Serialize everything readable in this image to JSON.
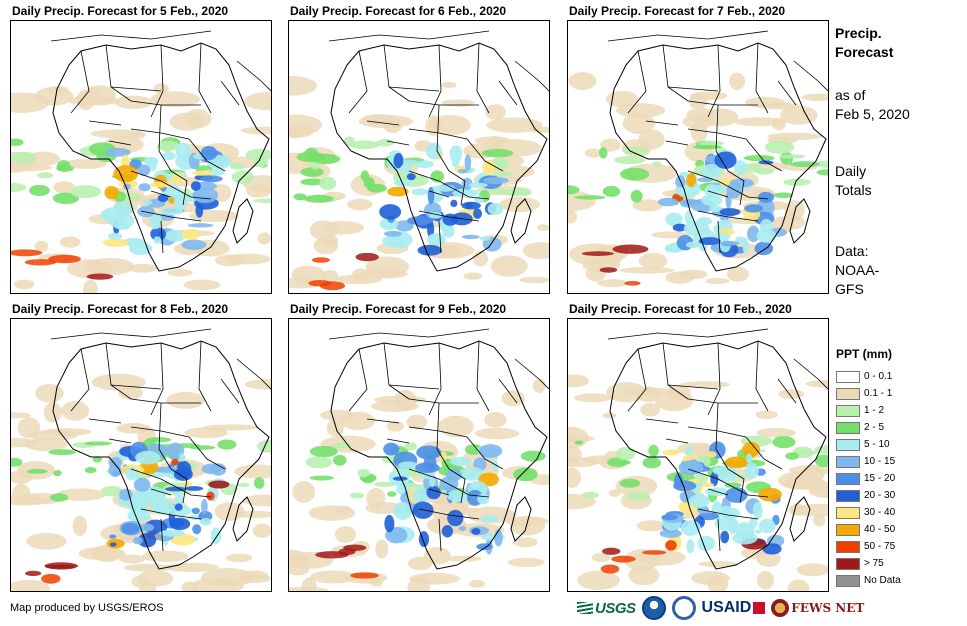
{
  "panels": [
    {
      "title": "Daily Precip. Forecast for 5 Feb., 2020",
      "intensity": 0.9
    },
    {
      "title": "Daily Precip. Forecast for 6 Feb., 2020",
      "intensity": 0.85
    },
    {
      "title": "Daily Precip. Forecast for 7 Feb., 2020",
      "intensity": 1.0
    },
    {
      "title": "Daily Precip. Forecast for 8 Feb., 2020",
      "intensity": 1.1
    },
    {
      "title": "Daily Precip. Forecast for 9 Feb., 2020",
      "intensity": 0.8
    },
    {
      "title": "Daily Precip. Forecast for 10 Feb., 2020",
      "intensity": 1.0
    }
  ],
  "side": {
    "title_line1": "Precip.",
    "title_line2": "Forecast",
    "asof_line1": "as of",
    "asof_line2": "Feb 5, 2020",
    "totals_line1": "Daily",
    "totals_line2": "Totals",
    "data_line1": "Data:",
    "data_line2": "NOAA-",
    "data_line3": "GFS"
  },
  "legend": {
    "title": "PPT (mm)",
    "items": [
      {
        "label": "0 - 0.1",
        "color": "#ffffff"
      },
      {
        "label": "0.1 - 1",
        "color": "#ecd9b8"
      },
      {
        "label": "1 - 2",
        "color": "#b8f0b0"
      },
      {
        "label": "2 - 5",
        "color": "#73e06a"
      },
      {
        "label": "5 - 10",
        "color": "#a8ecf0"
      },
      {
        "label": "10 - 15",
        "color": "#7fb8ee"
      },
      {
        "label": "15 - 20",
        "color": "#4d8fe8"
      },
      {
        "label": "20 - 30",
        "color": "#1f5fd8"
      },
      {
        "label": "30 - 40",
        "color": "#ffe680"
      },
      {
        "label": "40 - 50",
        "color": "#f5a800"
      },
      {
        "label": "50 - 75",
        "color": "#f04000"
      },
      {
        "label": "> 75",
        "color": "#a01818"
      },
      {
        "label": "No Data",
        "color": "#909090"
      }
    ]
  },
  "footer": {
    "credit": "Map produced by USGS/EROS"
  },
  "logos": {
    "usgs": "USGS",
    "usaid": "USAID",
    "fews": "FEWS NET"
  }
}
